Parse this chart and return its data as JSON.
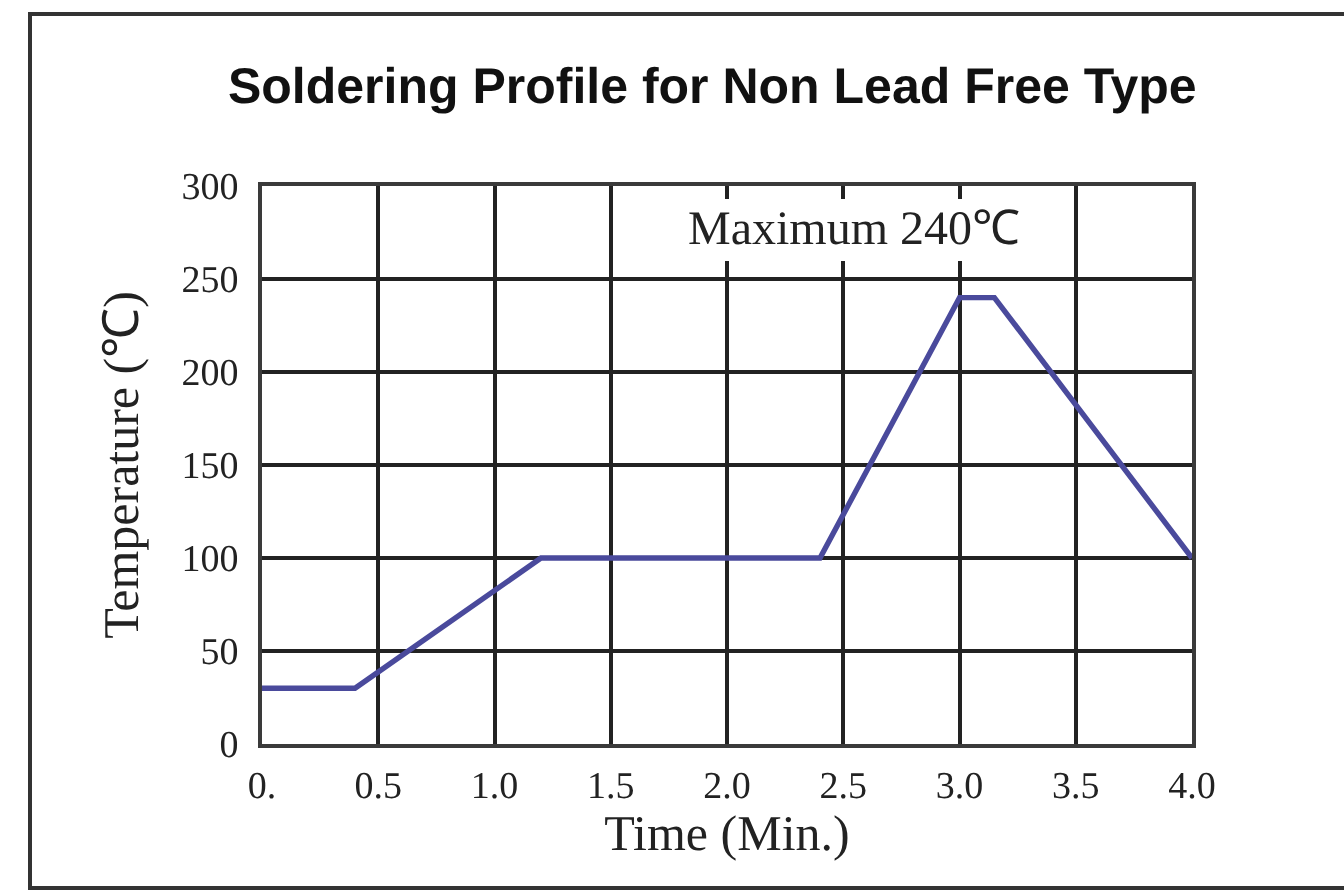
{
  "chart_data": {
    "type": "line",
    "title": "Soldering Profile for Non Lead Free Type",
    "xlabel": "Time (Min.)",
    "ylabel": "Temperature (℃)",
    "annotations": [
      "Maximum 240℃"
    ],
    "x": [
      0,
      0.4,
      1.2,
      2.4,
      3.0,
      3.15,
      4.0
    ],
    "series": [
      {
        "color": "#4a4a9c",
        "values": [
          30,
          30,
          100,
          100,
          240,
          240,
          100
        ]
      }
    ],
    "xlim": [
      0,
      4
    ],
    "ylim": [
      0,
      300
    ],
    "xticks": [
      {
        "value": 0,
        "label": "0."
      },
      0.5,
      {
        "value": 1,
        "label": "1.0"
      },
      1.5,
      {
        "value": 2,
        "label": "2.0"
      },
      2.5,
      {
        "value": 3,
        "label": "3.0"
      },
      3.5,
      {
        "value": 4,
        "label": "4.0"
      }
    ],
    "yticks": [
      0,
      50,
      100,
      150,
      200,
      250,
      300
    ],
    "grid": true
  }
}
